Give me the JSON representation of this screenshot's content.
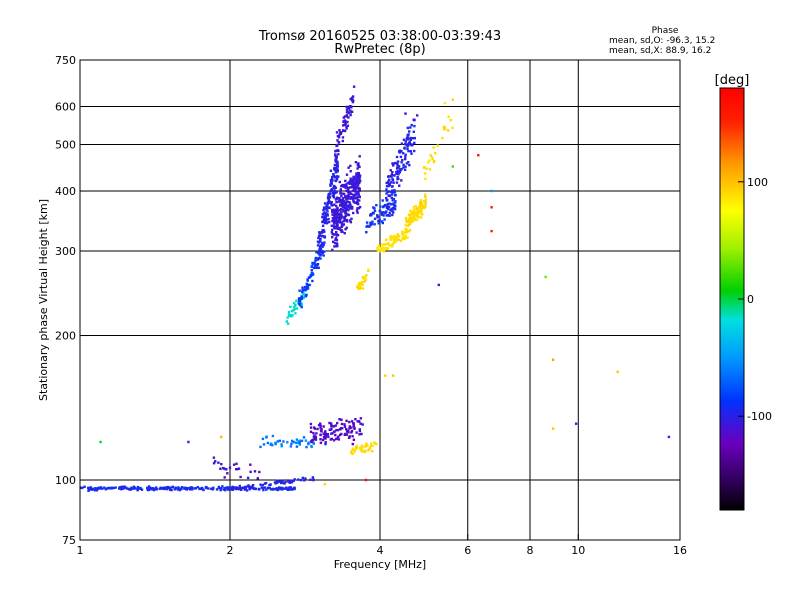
{
  "chart_data": {
    "type": "scatter",
    "title": "Tromsø 20160525 03:38:00-03:39:43",
    "subtitle": "RwPretec (8p)",
    "xlabel": "Frequency [MHz]",
    "ylabel": "Stationary phase Virtual Height [km]",
    "x_scale": "log",
    "y_scale": "log",
    "xlim": [
      1,
      16
    ],
    "ylim": [
      75,
      750
    ],
    "grid": true,
    "x_ticks": [
      1,
      2,
      4,
      6,
      8,
      10,
      16
    ],
    "y_ticks": [
      75,
      100,
      200,
      300,
      400,
      500,
      600,
      750
    ],
    "colorbar": {
      "label": "[deg]",
      "range": [
        -180,
        180
      ],
      "ticks": [
        100,
        0,
        -100
      ]
    },
    "stats": {
      "header": "Phase",
      "line_o": "mean, sd,O: -96.3, 15.2",
      "line_x": "mean, sd,X:  88.9, 16.2"
    },
    "bands": [
      {
        "x0": 1.0,
        "x1": 2.7,
        "hfit": [
          96,
          96
        ],
        "hscatter": 0.012,
        "phase": -108,
        "phase_sd": 6,
        "n": 260
      },
      {
        "x0": 2.0,
        "x1": 3.0,
        "hfit": [
          96,
          101
        ],
        "hscatter": 0.02,
        "phase": -112,
        "phase_sd": 8,
        "n": 60
      },
      {
        "x0": 1.85,
        "x1": 2.35,
        "hfit": [
          108,
          102
        ],
        "hscatter": 0.06,
        "phase": -120,
        "phase_sd": 15,
        "n": 25
      },
      {
        "x0": 2.3,
        "x1": 3.0,
        "hfit": [
          120,
          118
        ],
        "hscatter": 0.06,
        "phase": -70,
        "phase_sd": 25,
        "n": 45
      },
      {
        "x0": 2.9,
        "x1": 3.7,
        "hfit": [
          125,
          128
        ],
        "hscatter": 0.08,
        "phase": -125,
        "phase_sd": 15,
        "n": 120
      },
      {
        "x0": 3.5,
        "x1": 3.95,
        "hfit": [
          115,
          118
        ],
        "hscatter": 0.03,
        "phase": 95,
        "phase_sd": 8,
        "n": 35
      },
      {
        "x0": 2.6,
        "x1": 2.85,
        "hfit": [
          215,
          245
        ],
        "hscatter": 0.05,
        "phase": -20,
        "phase_sd": 15,
        "n": 35
      },
      {
        "x0": 2.75,
        "x1": 3.1,
        "hfit": [
          235,
          310
        ],
        "hscatter": 0.07,
        "phase": -100,
        "phase_sd": 10,
        "n": 80
      },
      {
        "x0": 3.0,
        "x1": 3.3,
        "hfit": [
          300,
          460
        ],
        "hscatter": 0.14,
        "phase": -112,
        "phase_sd": 8,
        "n": 160
      },
      {
        "x0": 3.2,
        "x1": 3.65,
        "hfit": [
          340,
          420
        ],
        "hscatter": 0.17,
        "phase": -118,
        "phase_sd": 8,
        "n": 360
      },
      {
        "x0": 3.25,
        "x1": 3.55,
        "hfit": [
          480,
          630
        ],
        "hscatter": 0.08,
        "phase": -118,
        "phase_sd": 8,
        "n": 70
      },
      {
        "x0": 3.6,
        "x1": 3.8,
        "hfit": [
          250,
          270
        ],
        "hscatter": 0.04,
        "phase": 95,
        "phase_sd": 8,
        "n": 25
      },
      {
        "x0": 3.75,
        "x1": 4.3,
        "hfit": [
          340,
          380
        ],
        "hscatter": 0.09,
        "phase": -105,
        "phase_sd": 15,
        "n": 80
      },
      {
        "x0": 4.1,
        "x1": 4.7,
        "hfit": [
          390,
          520
        ],
        "hscatter": 0.14,
        "phase": -112,
        "phase_sd": 10,
        "n": 130
      },
      {
        "x0": 3.95,
        "x1": 4.6,
        "hfit": [
          300,
          330
        ],
        "hscatter": 0.04,
        "phase": 92,
        "phase_sd": 8,
        "n": 70
      },
      {
        "x0": 4.5,
        "x1": 4.95,
        "hfit": [
          340,
          380
        ],
        "hscatter": 0.06,
        "phase": 95,
        "phase_sd": 8,
        "n": 90
      },
      {
        "x0": 4.9,
        "x1": 5.6,
        "hfit": [
          440,
          560
        ],
        "hscatter": 0.08,
        "phase": 95,
        "phase_sd": 12,
        "n": 25
      }
    ],
    "isolated": [
      {
        "x": 1.1,
        "y": 120,
        "phase": 0
      },
      {
        "x": 1.65,
        "y": 120,
        "phase": -110
      },
      {
        "x": 1.92,
        "y": 123,
        "phase": 110
      },
      {
        "x": 4.1,
        "y": 165,
        "phase": 100
      },
      {
        "x": 4.25,
        "y": 165,
        "phase": 105
      },
      {
        "x": 3.75,
        "y": 100,
        "phase": 175
      },
      {
        "x": 3.1,
        "y": 98,
        "phase": 95
      },
      {
        "x": 5.25,
        "y": 255,
        "phase": -115
      },
      {
        "x": 6.3,
        "y": 475,
        "phase": 170
      },
      {
        "x": 6.7,
        "y": 400,
        "phase": -60
      },
      {
        "x": 6.7,
        "y": 370,
        "phase": 165
      },
      {
        "x": 6.7,
        "y": 330,
        "phase": 160
      },
      {
        "x": 5.6,
        "y": 620,
        "phase": 100
      },
      {
        "x": 5.4,
        "y": 610,
        "phase": 90
      },
      {
        "x": 5.6,
        "y": 450,
        "phase": 20
      },
      {
        "x": 8.6,
        "y": 265,
        "phase": 30
      },
      {
        "x": 8.9,
        "y": 178,
        "phase": 120
      },
      {
        "x": 8.9,
        "y": 128,
        "phase": 105
      },
      {
        "x": 9.9,
        "y": 131,
        "phase": -110
      },
      {
        "x": 12.0,
        "y": 168,
        "phase": 105
      },
      {
        "x": 15.2,
        "y": 123,
        "phase": -110
      },
      {
        "x": 4.75,
        "y": 575,
        "phase": -110
      },
      {
        "x": 4.5,
        "y": 580,
        "phase": -120
      }
    ]
  }
}
